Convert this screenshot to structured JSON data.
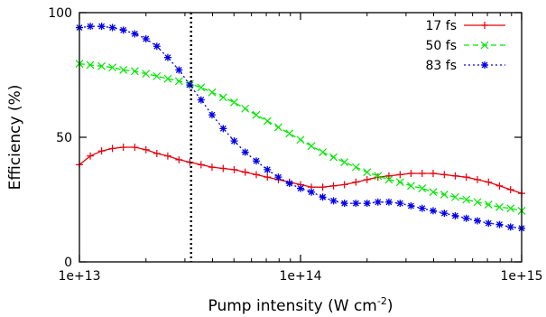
{
  "chart_data": {
    "type": "line",
    "title": "",
    "xlabel": "Pump intensity (W cm",
    "xlabel_superscript": "-2",
    "xlabel_suffix": ")",
    "ylabel": "Efficiency (%)",
    "x_scale": "log",
    "xlim": [
      10000000000000.0,
      1000000000000000.0
    ],
    "ylim": [
      0,
      100
    ],
    "x_ticks": [
      {
        "value": 10000000000000.0,
        "label": "1e+13"
      },
      {
        "value": 100000000000000.0,
        "label": "1e+14"
      },
      {
        "value": 1000000000000000.0,
        "label": "1e+15"
      }
    ],
    "y_ticks": [
      {
        "value": 0,
        "label": "0"
      },
      {
        "value": 50,
        "label": "50"
      },
      {
        "value": 100,
        "label": "100"
      }
    ],
    "grid": false,
    "legend_position": "top-right",
    "vertical_reference_line": {
      "x": 32000000000000.0,
      "style": "dotted",
      "color": "#000000"
    },
    "series": [
      {
        "name": "17 fs",
        "color": "#e8000b",
        "marker": "plus",
        "line": "solid",
        "x": [
          10000000000000.0,
          11200000000000.0,
          12600000000000.0,
          14100000000000.0,
          15800000000000.0,
          17800000000000.0,
          20000000000000.0,
          22400000000000.0,
          25100000000000.0,
          28200000000000.0,
          31600000000000.0,
          35500000000000.0,
          39800000000000.0,
          44700000000000.0,
          50100000000000.0,
          56200000000000.0,
          63100000000000.0,
          70800000000000.0,
          79400000000000.0,
          89100000000000.0,
          100000000000000.0,
          112000000000000.0,
          126000000000000.0,
          141000000000000.0,
          158000000000000.0,
          178000000000000.0,
          200000000000000.0,
          224000000000000.0,
          251000000000000.0,
          282000000000000.0,
          316000000000000.0,
          355000000000000.0,
          398000000000000.0,
          447000000000000.0,
          501000000000000.0,
          562000000000000.0,
          631000000000000.0,
          708000000000000.0,
          794000000000000.0,
          891000000000000.0,
          1000000000000000.0
        ],
        "y": [
          39,
          42.5,
          44.5,
          45.5,
          46,
          46,
          45,
          43.5,
          42.5,
          41,
          40,
          39,
          38,
          37.5,
          37,
          36,
          35,
          34,
          33,
          32,
          31,
          30,
          30,
          30.5,
          31,
          32,
          33,
          34,
          34.5,
          35,
          35.5,
          35.5,
          35.5,
          35,
          34.5,
          34,
          33,
          32,
          30.5,
          29,
          27.5
        ]
      },
      {
        "name": "50 fs",
        "color": "#00e800",
        "marker": "x",
        "line": "dashed",
        "x": [
          10000000000000.0,
          11200000000000.0,
          12600000000000.0,
          14100000000000.0,
          15800000000000.0,
          17800000000000.0,
          20000000000000.0,
          22400000000000.0,
          25100000000000.0,
          28200000000000.0,
          31600000000000.0,
          35500000000000.0,
          39800000000000.0,
          44700000000000.0,
          50100000000000.0,
          56200000000000.0,
          63100000000000.0,
          70800000000000.0,
          79400000000000.0,
          89100000000000.0,
          100000000000000.0,
          112000000000000.0,
          126000000000000.0,
          141000000000000.0,
          158000000000000.0,
          178000000000000.0,
          200000000000000.0,
          224000000000000.0,
          251000000000000.0,
          282000000000000.0,
          316000000000000.0,
          355000000000000.0,
          398000000000000.0,
          447000000000000.0,
          501000000000000.0,
          562000000000000.0,
          631000000000000.0,
          708000000000000.0,
          794000000000000.0,
          891000000000000.0,
          1000000000000000.0
        ],
        "y": [
          79.5,
          79,
          78.5,
          78,
          77,
          76.5,
          75.5,
          74.5,
          73.5,
          72.5,
          71.5,
          70,
          68,
          66,
          64,
          61.5,
          59,
          56.5,
          54,
          51.5,
          49,
          46.5,
          44,
          42,
          40,
          38,
          36,
          34.5,
          33,
          32,
          30.5,
          29.5,
          28,
          27,
          26,
          25,
          24,
          23,
          22,
          21.5,
          20.5
        ]
      },
      {
        "name": "83 fs",
        "color": "#0000e8",
        "marker": "asterisk",
        "line": "dotted",
        "x": [
          10000000000000.0,
          11200000000000.0,
          12600000000000.0,
          14100000000000.0,
          15800000000000.0,
          17800000000000.0,
          20000000000000.0,
          22400000000000.0,
          25100000000000.0,
          28200000000000.0,
          31600000000000.0,
          35500000000000.0,
          39800000000000.0,
          44700000000000.0,
          50100000000000.0,
          56200000000000.0,
          63100000000000.0,
          70800000000000.0,
          79400000000000.0,
          89100000000000.0,
          100000000000000.0,
          112000000000000.0,
          126000000000000.0,
          141000000000000.0,
          158000000000000.0,
          178000000000000.0,
          200000000000000.0,
          224000000000000.0,
          251000000000000.0,
          282000000000000.0,
          316000000000000.0,
          355000000000000.0,
          398000000000000.0,
          447000000000000.0,
          501000000000000.0,
          562000000000000.0,
          631000000000000.0,
          708000000000000.0,
          794000000000000.0,
          891000000000000.0,
          1000000000000000.0
        ],
        "y": [
          94,
          94.5,
          94.5,
          94,
          93,
          91.5,
          89.5,
          86.5,
          82,
          77,
          71,
          65,
          59,
          53.5,
          48.5,
          44,
          40.5,
          37,
          34,
          31.5,
          29.5,
          28,
          26,
          24.5,
          23.5,
          23.5,
          23.5,
          24,
          24,
          23.5,
          22.5,
          21.5,
          20.5,
          19.5,
          18.5,
          17.5,
          16.5,
          15.5,
          15,
          14,
          13.5
        ]
      }
    ]
  }
}
